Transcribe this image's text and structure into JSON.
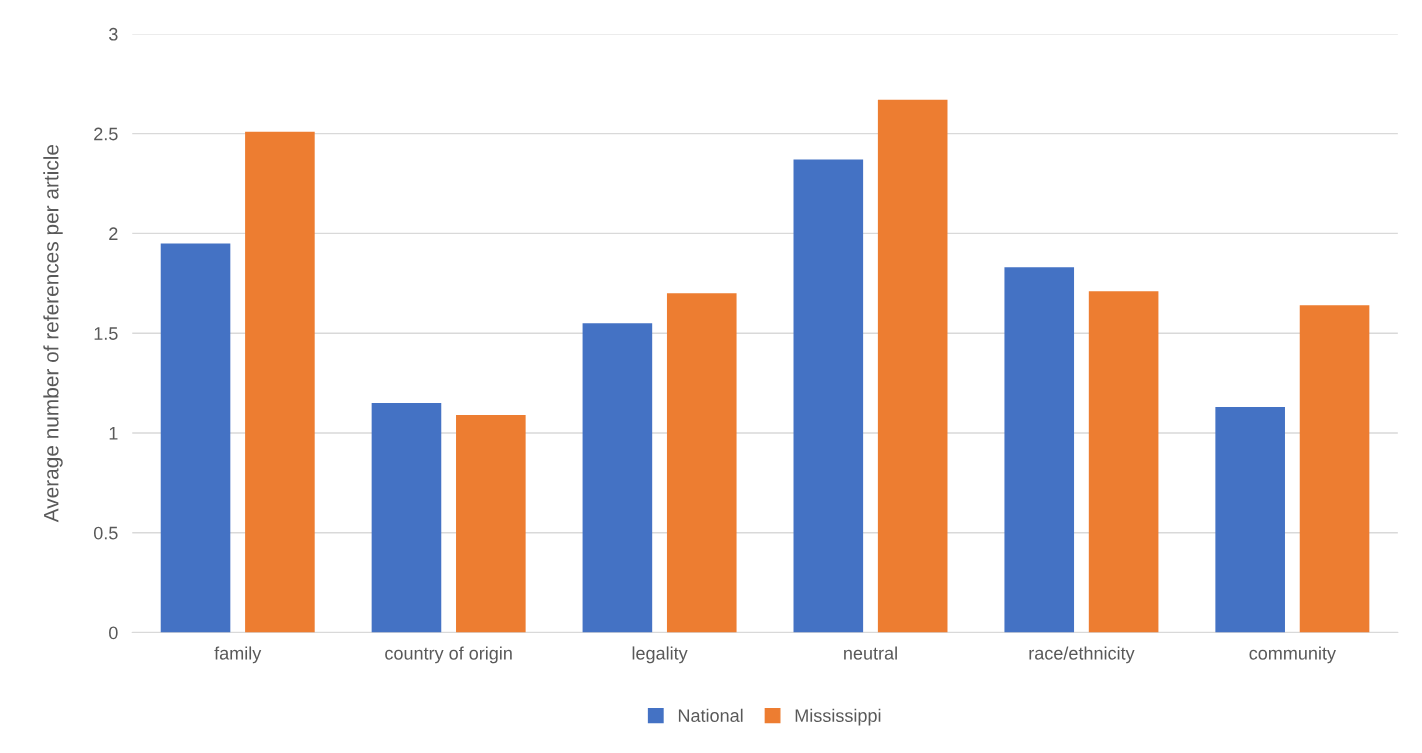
{
  "chart_data": {
    "type": "bar",
    "ylabel": "Average number of references per article",
    "categories": [
      "family",
      "country of origin",
      "legality",
      "neutral",
      "race/ethnicity",
      "community"
    ],
    "series": [
      {
        "name": "National",
        "color": "#4472c4",
        "values": [
          1.95,
          1.15,
          1.55,
          2.37,
          1.83,
          1.13
        ]
      },
      {
        "name": "Mississippi",
        "color": "#ed7d31",
        "values": [
          2.51,
          1.09,
          1.7,
          2.67,
          1.71,
          1.64
        ]
      }
    ],
    "ylim": [
      0,
      3
    ],
    "yticks": [
      0,
      0.5,
      1,
      1.5,
      2,
      2.5,
      3
    ],
    "grid": "y",
    "legend": "bottom"
  }
}
